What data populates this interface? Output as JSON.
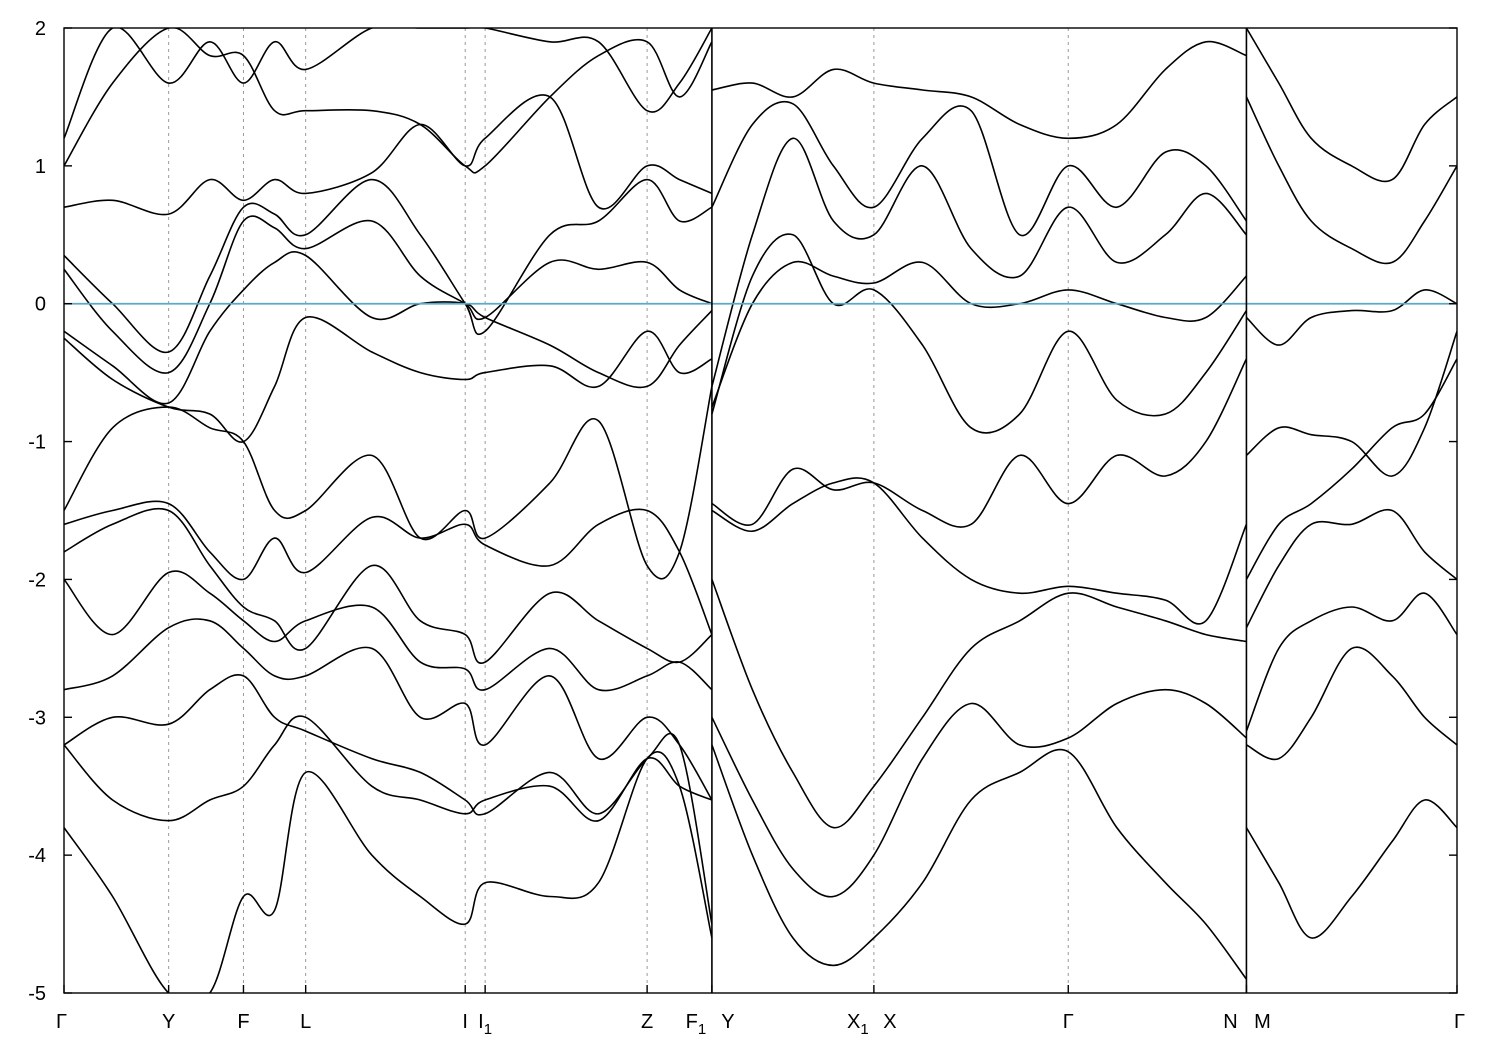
{
  "chart_data": {
    "type": "line",
    "title": "",
    "xlabel": "",
    "ylabel": "",
    "ylim": [
      -5,
      2
    ],
    "yticks": [
      "2",
      "1",
      "0",
      "-1",
      "-2",
      "-3",
      "-4",
      "-5"
    ],
    "grid": false,
    "fermi_level": 0,
    "colors": {
      "bands": "#000000",
      "fermi": "#5aa9c6",
      "kpath": "#9a9a9a"
    },
    "kpoints": [
      {
        "label": "Γ",
        "sub": "",
        "x": 0.0
      },
      {
        "label": "Y",
        "sub": "",
        "x": 0.646
      },
      {
        "label": "F",
        "sub": "",
        "x": 1.108
      },
      {
        "label": "L",
        "sub": "",
        "x": 1.492
      },
      {
        "label": "I",
        "sub": "",
        "x": 2.477
      },
      {
        "label": "I",
        "sub": "1",
        "x": 2.6
      },
      {
        "label": "Z",
        "sub": "",
        "x": 3.6
      },
      {
        "label": "F",
        "sub": "1",
        "x": 4.0
      },
      {
        "label": "Y",
        "sub": "",
        "x": 4.0
      },
      {
        "label": "X",
        "sub": "1",
        "x": 5.0
      },
      {
        "label": "X",
        "sub": "",
        "x": 5.0
      },
      {
        "label": "Γ",
        "sub": "",
        "x": 6.2
      },
      {
        "label": "N",
        "sub": "",
        "x": 7.3
      },
      {
        "label": "M",
        "sub": "",
        "x": 7.3
      },
      {
        "label": "Γ",
        "sub": "",
        "x": 8.6
      }
    ],
    "path_breaks": [
      4.0,
      7.3
    ],
    "series": [
      {
        "x": [
          0.0,
          0.3,
          0.646,
          0.9,
          1.108,
          1.3,
          1.492,
          1.9,
          2.2,
          2.477,
          2.6,
          3.0,
          3.3,
          3.6,
          3.8,
          4.0
        ],
        "values": [
          -0.2,
          -0.45,
          -0.72,
          -0.2,
          0.1,
          0.3,
          0.35,
          -0.1,
          0.0,
          0.0,
          -0.1,
          -0.3,
          -0.5,
          -0.6,
          -0.3,
          -0.05
        ]
      },
      {
        "x": [
          0.0,
          0.3,
          0.646,
          0.9,
          1.108,
          1.3,
          1.492,
          1.9,
          2.2,
          2.477,
          2.6,
          3.0,
          3.3,
          3.6,
          3.8,
          4.0
        ],
        "values": [
          0.25,
          -0.2,
          -0.5,
          0.0,
          0.6,
          0.55,
          0.4,
          0.6,
          0.2,
          0.0,
          -0.1,
          0.3,
          0.25,
          0.3,
          0.1,
          0.0
        ]
      },
      {
        "x": [
          0.0,
          0.3,
          0.646,
          0.9,
          1.108,
          1.3,
          1.492,
          1.9,
          2.2,
          2.477,
          2.6,
          3.0,
          3.3,
          3.6,
          3.8,
          4.0
        ],
        "values": [
          0.35,
          0.0,
          -0.35,
          0.2,
          0.7,
          0.65,
          0.5,
          0.9,
          0.5,
          0.0,
          -0.2,
          0.5,
          0.6,
          0.9,
          0.6,
          0.7
        ]
      },
      {
        "x": [
          0.0,
          0.3,
          0.646,
          0.9,
          1.108,
          1.3,
          1.492,
          1.9,
          2.2,
          2.477,
          2.6,
          3.0,
          3.3,
          3.6,
          3.8,
          4.0
        ],
        "values": [
          0.7,
          0.75,
          0.65,
          0.9,
          0.75,
          0.9,
          0.8,
          0.95,
          1.3,
          1.0,
          1.2,
          1.5,
          0.7,
          1.0,
          0.9,
          0.8
        ]
      },
      {
        "x": [
          0.0,
          0.3,
          0.646,
          0.9,
          1.108,
          1.3,
          1.492,
          1.9,
          2.2,
          2.477,
          2.6,
          3.0,
          3.3,
          3.6,
          3.8,
          4.0
        ],
        "values": [
          -0.25,
          -0.55,
          -0.75,
          -0.8,
          -1.0,
          -0.6,
          -0.1,
          -0.35,
          -0.5,
          -0.55,
          -0.5,
          -0.45,
          -0.6,
          -0.2,
          -0.5,
          -0.4
        ]
      },
      {
        "x": [
          0.0,
          0.3,
          0.646,
          0.9,
          1.108,
          1.3,
          1.492,
          1.9,
          2.2,
          2.477,
          2.6,
          3.0,
          3.3,
          3.6,
          3.8,
          4.0
        ],
        "values": [
          -1.5,
          -0.9,
          -0.75,
          -0.9,
          -1.0,
          -1.5,
          -1.5,
          -1.1,
          -1.7,
          -1.5,
          -1.7,
          -1.3,
          -0.85,
          -1.9,
          -1.8,
          -0.6
        ]
      },
      {
        "x": [
          0.0,
          0.3,
          0.646,
          0.9,
          1.108,
          1.3,
          1.492,
          1.9,
          2.2,
          2.477,
          2.6,
          3.0,
          3.3,
          3.6,
          3.8,
          4.0
        ],
        "values": [
          -1.6,
          -1.5,
          -1.45,
          -1.8,
          -2.0,
          -1.7,
          -1.95,
          -1.55,
          -1.7,
          -1.6,
          -1.75,
          -1.9,
          -1.6,
          -1.5,
          -1.8,
          -2.4
        ]
      },
      {
        "x": [
          0.0,
          0.3,
          0.646,
          0.9,
          1.108,
          1.3,
          1.492,
          1.9,
          2.2,
          2.477,
          2.6,
          3.0,
          3.3,
          3.6,
          3.8,
          4.0
        ],
        "values": [
          -1.8,
          -1.6,
          -1.5,
          -1.9,
          -2.2,
          -2.3,
          -2.5,
          -1.9,
          -2.3,
          -2.4,
          -2.6,
          -2.1,
          -2.3,
          -2.5,
          -2.6,
          -2.4
        ]
      },
      {
        "x": [
          0.0,
          0.3,
          0.646,
          0.9,
          1.108,
          1.3,
          1.492,
          1.9,
          2.2,
          2.477,
          2.6,
          3.0,
          3.3,
          3.6,
          3.8,
          4.0
        ],
        "values": [
          -2.0,
          -2.4,
          -1.95,
          -2.1,
          -2.3,
          -2.45,
          -2.3,
          -2.2,
          -2.6,
          -2.65,
          -2.8,
          -2.5,
          -2.8,
          -2.7,
          -2.6,
          -2.8
        ]
      },
      {
        "x": [
          0.0,
          0.3,
          0.646,
          0.9,
          1.108,
          1.3,
          1.492,
          1.9,
          2.2,
          2.477,
          2.6,
          3.0,
          3.3,
          3.6,
          3.8,
          4.0
        ],
        "values": [
          -2.8,
          -2.7,
          -2.35,
          -2.3,
          -2.5,
          -2.7,
          -2.7,
          -2.5,
          -3.0,
          -2.9,
          -3.2,
          -2.7,
          -3.3,
          -3.0,
          -3.2,
          -3.6
        ]
      },
      {
        "x": [
          0.0,
          0.3,
          0.646,
          0.9,
          1.108,
          1.3,
          1.492,
          1.9,
          2.2,
          2.477,
          2.6,
          3.0,
          3.3,
          3.6,
          3.8,
          4.0
        ],
        "values": [
          -3.2,
          -3.0,
          -3.05,
          -2.8,
          -2.7,
          -3.0,
          -3.1,
          -3.3,
          -3.4,
          -3.6,
          -3.7,
          -3.4,
          -3.7,
          -3.3,
          -3.2,
          -4.5
        ]
      },
      {
        "x": [
          0.0,
          0.3,
          0.646,
          0.9,
          1.108,
          1.3,
          1.492,
          1.9,
          2.2,
          2.477,
          2.6,
          3.0,
          3.3,
          3.6,
          3.8,
          4.0
        ],
        "values": [
          -3.2,
          -3.6,
          -3.75,
          -3.6,
          -3.5,
          -3.2,
          -3.0,
          -3.5,
          -3.6,
          -3.7,
          -3.6,
          -3.5,
          -3.75,
          -3.3,
          -3.5,
          -3.6
        ]
      },
      {
        "x": [
          0.0,
          0.3,
          0.646,
          0.9,
          1.108,
          1.3,
          1.492,
          1.9,
          2.2,
          2.477,
          2.6,
          3.0,
          3.3,
          3.6,
          3.8,
          4.0
        ],
        "values": [
          -3.8,
          -4.3,
          -5.0,
          -5.0,
          -4.3,
          -4.4,
          -3.4,
          -4.0,
          -4.3,
          -4.5,
          -4.2,
          -4.3,
          -4.2,
          -3.3,
          -3.5,
          -4.6
        ]
      },
      {
        "x": [
          0.0,
          0.3,
          0.646,
          0.9,
          1.108,
          1.3,
          1.492,
          1.9,
          2.2,
          2.477,
          2.6,
          3.0,
          3.3,
          3.6,
          3.8,
          4.0
        ],
        "values": [
          1.0,
          1.6,
          2.0,
          1.8,
          1.8,
          1.4,
          1.4,
          1.4,
          1.3,
          1.0,
          1.0,
          1.5,
          1.8,
          1.9,
          1.5,
          1.9
        ]
      },
      {
        "x": [
          0.0,
          0.3,
          0.646,
          0.9,
          1.108,
          1.3,
          1.492,
          1.9,
          2.2,
          2.477,
          2.6,
          3.0,
          3.3,
          3.6,
          3.8,
          4.0
        ],
        "values": [
          1.2,
          2.0,
          1.6,
          1.9,
          1.6,
          1.9,
          1.7,
          2.0,
          2.0,
          2.0,
          2.0,
          1.9,
          1.9,
          1.4,
          1.6,
          2.0
        ]
      },
      {
        "x": [
          4.0,
          4.25,
          4.5,
          4.75,
          5.0,
          5.3,
          5.6,
          5.9,
          6.2,
          6.5,
          6.8,
          7.05,
          7.3
        ],
        "values": [
          -0.8,
          0.2,
          0.5,
          0.0,
          0.1,
          -0.3,
          -0.9,
          -0.8,
          -0.2,
          -0.7,
          -0.8,
          -0.5,
          -0.05
        ]
      },
      {
        "x": [
          4.0,
          4.25,
          4.5,
          4.75,
          5.0,
          5.3,
          5.6,
          5.9,
          6.2,
          6.5,
          6.8,
          7.05,
          7.3
        ],
        "values": [
          -0.75,
          0.0,
          0.3,
          0.2,
          0.15,
          0.3,
          0.0,
          0.0,
          0.1,
          0.0,
          -0.1,
          -0.1,
          0.2
        ]
      },
      {
        "x": [
          4.0,
          4.25,
          4.5,
          4.75,
          5.0,
          5.3,
          5.6,
          5.9,
          6.2,
          6.5,
          6.8,
          7.05,
          7.3
        ],
        "values": [
          -0.6,
          0.5,
          1.2,
          0.6,
          0.5,
          1.0,
          0.4,
          0.2,
          0.7,
          0.3,
          0.5,
          0.8,
          0.5
        ]
      },
      {
        "x": [
          4.0,
          4.25,
          4.5,
          4.75,
          5.0,
          5.3,
          5.6,
          5.9,
          6.2,
          6.5,
          6.8,
          7.05,
          7.3
        ],
        "values": [
          0.7,
          1.3,
          1.45,
          1.0,
          0.7,
          1.2,
          1.4,
          0.5,
          1.0,
          0.7,
          1.1,
          1.0,
          0.6
        ]
      },
      {
        "x": [
          4.0,
          4.25,
          4.5,
          4.75,
          5.0,
          5.3,
          5.6,
          5.9,
          6.2,
          6.5,
          6.8,
          7.05,
          7.3
        ],
        "values": [
          1.55,
          1.6,
          1.5,
          1.7,
          1.6,
          1.55,
          1.5,
          1.3,
          1.2,
          1.3,
          1.7,
          1.9,
          1.8
        ]
      },
      {
        "x": [
          4.0,
          4.25,
          4.5,
          4.75,
          5.0,
          5.3,
          5.6,
          5.9,
          6.2,
          6.5,
          6.8,
          7.05,
          7.3
        ],
        "values": [
          -1.45,
          -1.6,
          -1.2,
          -1.35,
          -1.3,
          -1.5,
          -1.6,
          -1.1,
          -1.45,
          -1.1,
          -1.25,
          -1.0,
          -0.4
        ]
      },
      {
        "x": [
          4.0,
          4.25,
          4.5,
          4.75,
          5.0,
          5.3,
          5.6,
          5.9,
          6.2,
          6.5,
          6.8,
          7.05,
          7.3
        ],
        "values": [
          -1.5,
          -1.65,
          -1.45,
          -1.3,
          -1.3,
          -1.7,
          -2.0,
          -2.1,
          -2.05,
          -2.1,
          -2.15,
          -2.3,
          -1.6
        ]
      },
      {
        "x": [
          4.0,
          4.25,
          4.5,
          4.75,
          5.0,
          5.3,
          5.6,
          5.9,
          6.2,
          6.5,
          6.8,
          7.05,
          7.3
        ],
        "values": [
          -2.0,
          -2.8,
          -3.4,
          -3.8,
          -3.5,
          -3.0,
          -2.5,
          -2.3,
          -2.1,
          -2.2,
          -2.3,
          -2.4,
          -2.45
        ]
      },
      {
        "x": [
          4.0,
          4.25,
          4.5,
          4.75,
          5.0,
          5.3,
          5.6,
          5.9,
          6.2,
          6.5,
          6.8,
          7.05,
          7.3
        ],
        "values": [
          -3.0,
          -3.6,
          -4.1,
          -4.3,
          -4.0,
          -3.3,
          -2.9,
          -3.2,
          -3.15,
          -2.9,
          -2.8,
          -2.9,
          -3.15
        ]
      },
      {
        "x": [
          4.0,
          4.25,
          4.5,
          4.75,
          5.0,
          5.3,
          5.6,
          5.9,
          6.2,
          6.5,
          6.8,
          7.05,
          7.3
        ],
        "values": [
          -3.2,
          -4.0,
          -4.6,
          -4.8,
          -4.6,
          -4.2,
          -3.6,
          -3.4,
          -3.25,
          -3.8,
          -4.2,
          -4.5,
          -4.9
        ]
      },
      {
        "x": [
          7.3,
          7.5,
          7.7,
          7.95,
          8.2,
          8.4,
          8.6
        ],
        "values": [
          -0.1,
          -0.3,
          -0.1,
          -0.05,
          -0.05,
          0.1,
          0.0
        ]
      },
      {
        "x": [
          7.3,
          7.5,
          7.7,
          7.95,
          8.2,
          8.4,
          8.6
        ],
        "values": [
          -1.1,
          -0.9,
          -0.95,
          -1.0,
          -1.25,
          -0.9,
          -0.2
        ]
      },
      {
        "x": [
          7.3,
          7.5,
          7.7,
          7.95,
          8.2,
          8.4,
          8.6
        ],
        "values": [
          -2.0,
          -1.6,
          -1.45,
          -1.2,
          -0.9,
          -0.8,
          -0.4
        ]
      },
      {
        "x": [
          7.3,
          7.5,
          7.7,
          7.95,
          8.2,
          8.4,
          8.6
        ],
        "values": [
          -2.35,
          -1.9,
          -1.6,
          -1.6,
          -1.5,
          -1.8,
          -2.0
        ]
      },
      {
        "x": [
          7.3,
          7.5,
          7.7,
          7.95,
          8.2,
          8.4,
          8.6
        ],
        "values": [
          -3.1,
          -2.5,
          -2.3,
          -2.2,
          -2.3,
          -2.1,
          -2.4
        ]
      },
      {
        "x": [
          7.3,
          7.5,
          7.7,
          7.95,
          8.2,
          8.4,
          8.6
        ],
        "values": [
          -3.2,
          -3.3,
          -3.0,
          -2.5,
          -2.7,
          -3.0,
          -3.2
        ]
      },
      {
        "x": [
          7.3,
          7.5,
          7.7,
          7.95,
          8.2,
          8.4,
          8.6
        ],
        "values": [
          -3.8,
          -4.2,
          -4.6,
          -4.3,
          -3.9,
          -3.6,
          -3.8
        ]
      },
      {
        "x": [
          7.3,
          7.5,
          7.7,
          7.95,
          8.2,
          8.4,
          8.6
        ],
        "values": [
          1.5,
          1.0,
          0.6,
          0.4,
          0.3,
          0.6,
          1.0
        ]
      },
      {
        "x": [
          7.3,
          7.5,
          7.7,
          7.95,
          8.2,
          8.4,
          8.6
        ],
        "values": [
          2.0,
          1.6,
          1.2,
          1.0,
          0.9,
          1.3,
          1.5
        ]
      }
    ]
  }
}
